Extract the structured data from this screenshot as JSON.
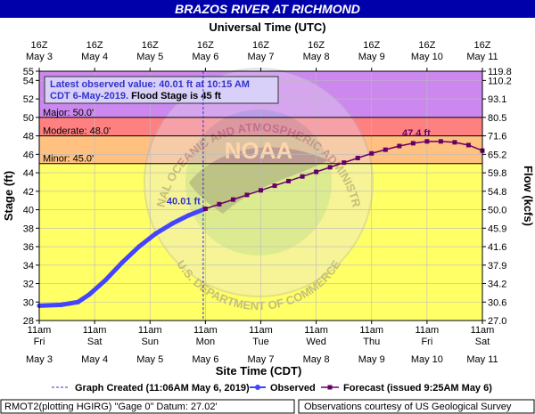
{
  "chart_data": {
    "type": "line",
    "title": "BRAZOS RIVER AT RICHMOND",
    "top_axis_label": "Universal Time (UTC)",
    "top_ticks": [
      {
        "hour": "16Z",
        "date": "May 3"
      },
      {
        "hour": "16Z",
        "date": "May 4"
      },
      {
        "hour": "16Z",
        "date": "May 5"
      },
      {
        "hour": "16Z",
        "date": "May 6"
      },
      {
        "hour": "16Z",
        "date": "May 7"
      },
      {
        "hour": "16Z",
        "date": "May 8"
      },
      {
        "hour": "16Z",
        "date": "May 9"
      },
      {
        "hour": "16Z",
        "date": "May 10"
      },
      {
        "hour": "16Z",
        "date": "May 11"
      }
    ],
    "bottom_ticks": [
      {
        "time": "11am",
        "day": "Fri",
        "date": "May 3"
      },
      {
        "time": "11am",
        "day": "Sat",
        "date": "May 4"
      },
      {
        "time": "11am",
        "day": "Sun",
        "date": "May 5"
      },
      {
        "time": "11am",
        "day": "Mon",
        "date": "May 6"
      },
      {
        "time": "11am",
        "day": "Tue",
        "date": "May 7"
      },
      {
        "time": "11am",
        "day": "Wed",
        "date": "May 8"
      },
      {
        "time": "11am",
        "day": "Thu",
        "date": "May 9"
      },
      {
        "time": "11am",
        "day": "Fri",
        "date": "May 10"
      },
      {
        "time": "11am",
        "day": "Sat",
        "date": "May 11"
      }
    ],
    "xlabel": "Site Time (CDT)",
    "ylabel": "Stage (ft)",
    "ylabel_right": "Flow (kcfs)",
    "xlim_days": [
      0,
      8
    ],
    "ylim": [
      28,
      55
    ],
    "y_ticks": [
      28,
      30,
      32,
      34,
      36,
      38,
      40,
      42,
      44,
      46,
      48,
      50,
      52,
      54,
      55
    ],
    "flow_ticks": [
      {
        "stage": 28,
        "label": "27.0"
      },
      {
        "stage": 30,
        "label": "30.6"
      },
      {
        "stage": 32,
        "label": "34.2"
      },
      {
        "stage": 34,
        "label": "37.9"
      },
      {
        "stage": 36,
        "label": "41.6"
      },
      {
        "stage": 38,
        "label": "45.9"
      },
      {
        "stage": 40,
        "label": "50.0"
      },
      {
        "stage": 42,
        "label": "54.8"
      },
      {
        "stage": 44,
        "label": "59.8"
      },
      {
        "stage": 46,
        "label": "65.2"
      },
      {
        "stage": 48,
        "label": "71.6"
      },
      {
        "stage": 50,
        "label": "80.5"
      },
      {
        "stage": 52,
        "label": "93.1"
      },
      {
        "stage": 54,
        "label": "110.2"
      },
      {
        "stage": 55,
        "label": "119.8"
      }
    ],
    "flood_categories": [
      {
        "name": "Minor",
        "label": "Minor: 45.0'",
        "stage": 45.0,
        "color": "#ffc080"
      },
      {
        "name": "Moderate",
        "label": "Moderate: 48.0'",
        "stage": 48.0,
        "color": "#ff8080"
      },
      {
        "name": "Major",
        "label": "Major: 50.0'",
        "stage": 50.0,
        "color": "#cc88ee"
      }
    ],
    "below_flood_color": "#ffff66",
    "latest_value_box": {
      "line1": "Latest observed value: 40.01 ft at 10:15 AM",
      "line2_a": "CDT 6-May-2019.",
      "line2_b": " Flood Stage is 45 ft"
    },
    "observed_label": "40.01 ft",
    "forecast_label": "47.4 ft",
    "observed": {
      "name": "Observed",
      "color": "#4444ff",
      "x": [
        0,
        0.4,
        0.7,
        0.9,
        1.2,
        1.5,
        1.8,
        2.1,
        2.4,
        2.7,
        2.96
      ],
      "y": [
        29.6,
        29.7,
        30.0,
        30.8,
        32.4,
        34.3,
        36.0,
        37.4,
        38.5,
        39.4,
        40.01
      ]
    },
    "forecast": {
      "name": "Forecast (issued 9:25AM May 6)",
      "color": "#660066",
      "x": [
        3.0,
        3.25,
        3.5,
        3.75,
        4.0,
        4.25,
        4.5,
        4.75,
        5.0,
        5.25,
        5.5,
        5.75,
        6.0,
        6.25,
        6.5,
        6.75,
        7.0,
        7.25,
        7.5,
        7.75,
        8.0
      ],
      "y": [
        40.1,
        40.6,
        41.1,
        41.6,
        42.1,
        42.6,
        43.1,
        43.6,
        44.1,
        44.6,
        45.1,
        45.6,
        46.1,
        46.5,
        46.9,
        47.2,
        47.4,
        47.4,
        47.3,
        47.0,
        46.4
      ]
    },
    "now_x": 2.96,
    "legend": {
      "graph_created": "Graph Created (11:06AM May 6, 2019)",
      "observed": "Observed",
      "forecast": "Forecast (issued 9:25AM May 6)"
    },
    "footer_left": "RMOT2(plotting HGIRG) \"Gage 0\" Datum: 27.02'",
    "footer_right": "Observations courtesy of US Geological Survey",
    "watermark_text": "NATIONAL OCEANIC AND ATMOSPHERIC ADMINISTRATION",
    "watermark_bottom": "U.S. DEPARTMENT OF COMMERCE",
    "watermark_logo": "NOAA",
    "colors": {
      "title_bar": "#0000aa",
      "axis_text": "#000000",
      "annotation_text": "#3333cc"
    }
  }
}
